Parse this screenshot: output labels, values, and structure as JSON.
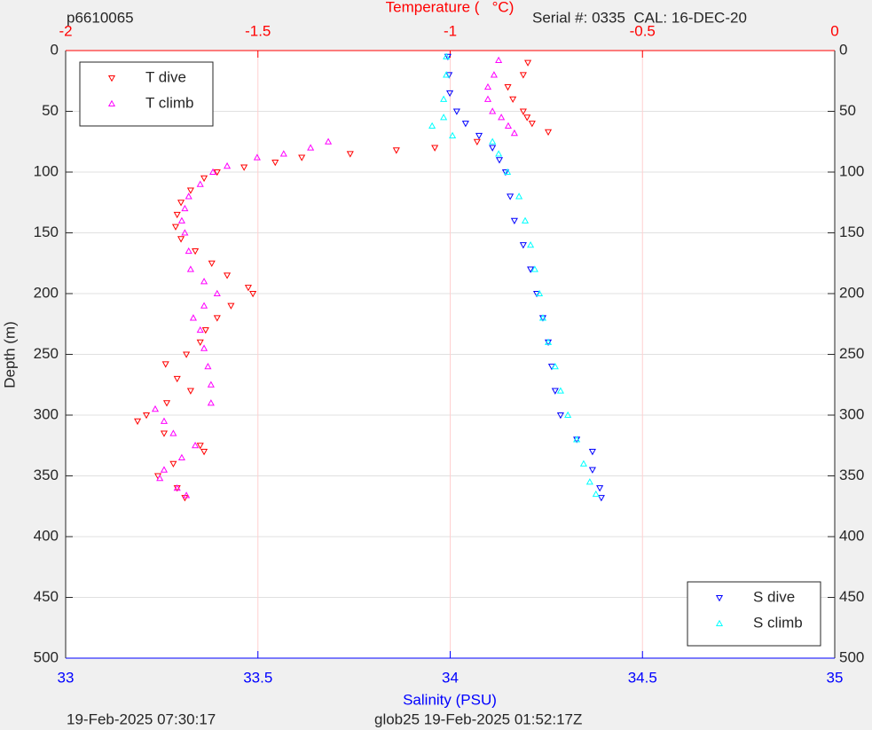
{
  "chart_data": {
    "type": "scatter",
    "title": "p6610065",
    "subtitle": "Serial #: 0335  CAL: 16-DEC-20",
    "x_label": "Salinity (PSU)",
    "x2_label": "Temperature (   °C)",
    "y_label": "Depth (m)",
    "footer_left": "19-Feb-2025 07:30:17",
    "footer_right": "glob25 19-Feb-2025 01:52:17Z",
    "xlim": [
      33,
      35
    ],
    "xticks": [
      33,
      33.5,
      34,
      34.5,
      35
    ],
    "x_color": "#0000ff",
    "x2lim": [
      -2,
      0
    ],
    "x2ticks": [
      -2,
      -1.5,
      -1,
      -0.5,
      0
    ],
    "x2_color": "#ff0000",
    "ylim": [
      0,
      500
    ],
    "yticks": [
      0,
      50,
      100,
      150,
      200,
      250,
      300,
      350,
      400,
      450,
      500
    ],
    "y_reversed": true,
    "grid": true,
    "legend_loc": "upper left",
    "legend2_loc": "lower right",
    "series": [
      {
        "name": "T dive",
        "color": "#ff0000",
        "marker": "v",
        "axis": "x2",
        "x": [
          -0.798,
          -0.81,
          -0.85,
          -0.837,
          -0.81,
          -0.8,
          -0.787,
          -0.745,
          -0.93,
          -1.04,
          -1.14,
          -1.26,
          -1.386,
          -1.455,
          -1.536,
          -1.606,
          -1.64,
          -1.675,
          -1.7,
          -1.71,
          -1.714,
          -1.7,
          -1.663,
          -1.62,
          -1.58,
          -1.525,
          -1.513,
          -1.57,
          -1.606,
          -1.636,
          -1.65,
          -1.686,
          -1.74,
          -1.71,
          -1.675,
          -1.737,
          -1.79,
          -1.813,
          -1.744,
          -1.65,
          -1.64,
          -1.72,
          -1.76,
          -1.71,
          -1.69
        ],
        "values": [
          10,
          20,
          30,
          40,
          50,
          55,
          60,
          67,
          75,
          80,
          82,
          85,
          88,
          92,
          96,
          100,
          105,
          115,
          125,
          135,
          145,
          155,
          165,
          175,
          185,
          195,
          200,
          210,
          220,
          230,
          240,
          250,
          258,
          270,
          280,
          290,
          300,
          305,
          315,
          325,
          330,
          340,
          350,
          360,
          368
        ]
      },
      {
        "name": "T climb",
        "color": "#ff00ff",
        "marker": "^",
        "axis": "x2",
        "x": [
          -0.874,
          -0.886,
          -0.902,
          -0.902,
          -0.89,
          -0.867,
          -0.849,
          -0.833,
          -1.317,
          -1.363,
          -1.433,
          -1.502,
          -1.58,
          -1.617,
          -1.65,
          -1.68,
          -1.69,
          -1.698,
          -1.69,
          -1.68,
          -1.675,
          -1.64,
          -1.606,
          -1.64,
          -1.668,
          -1.65,
          -1.64,
          -1.63,
          -1.622,
          -1.622,
          -1.767,
          -1.744,
          -1.72,
          -1.663,
          -1.698,
          -1.744,
          -1.755,
          -1.71,
          -1.686
        ],
        "values": [
          8,
          20,
          30,
          40,
          50,
          55,
          62,
          68,
          75,
          80,
          85,
          88,
          95,
          100,
          110,
          120,
          130,
          140,
          150,
          165,
          180,
          190,
          200,
          210,
          220,
          230,
          245,
          260,
          275,
          290,
          295,
          305,
          315,
          325,
          335,
          345,
          352,
          360,
          366
        ]
      },
      {
        "name": "S dive",
        "color": "#0000ff",
        "marker": "v",
        "x": [
          33.994,
          33.997,
          33.999,
          34.017,
          34.04,
          34.075,
          34.11,
          34.128,
          34.144,
          34.156,
          34.167,
          34.19,
          34.209,
          34.225,
          34.241,
          34.255,
          34.264,
          34.273,
          34.287,
          34.329,
          34.37,
          34.37,
          34.389,
          34.393
        ],
        "values": [
          5,
          20,
          35,
          50,
          60,
          70,
          80,
          90,
          100,
          120,
          140,
          160,
          180,
          200,
          220,
          240,
          260,
          280,
          300,
          320,
          330,
          345,
          360,
          368
        ]
      },
      {
        "name": "S climb",
        "color": "#00ffff",
        "marker": "^",
        "x": [
          33.99,
          33.99,
          33.983,
          33.983,
          33.953,
          34.006,
          34.11,
          34.126,
          34.149,
          34.179,
          34.195,
          34.209,
          34.22,
          34.232,
          34.241,
          34.255,
          34.273,
          34.287,
          34.306,
          34.329,
          34.347,
          34.363,
          34.379
        ],
        "values": [
          5,
          20,
          40,
          55,
          62,
          70,
          75,
          85,
          100,
          120,
          140,
          160,
          180,
          200,
          220,
          240,
          260,
          280,
          300,
          320,
          340,
          355,
          365
        ]
      }
    ]
  }
}
